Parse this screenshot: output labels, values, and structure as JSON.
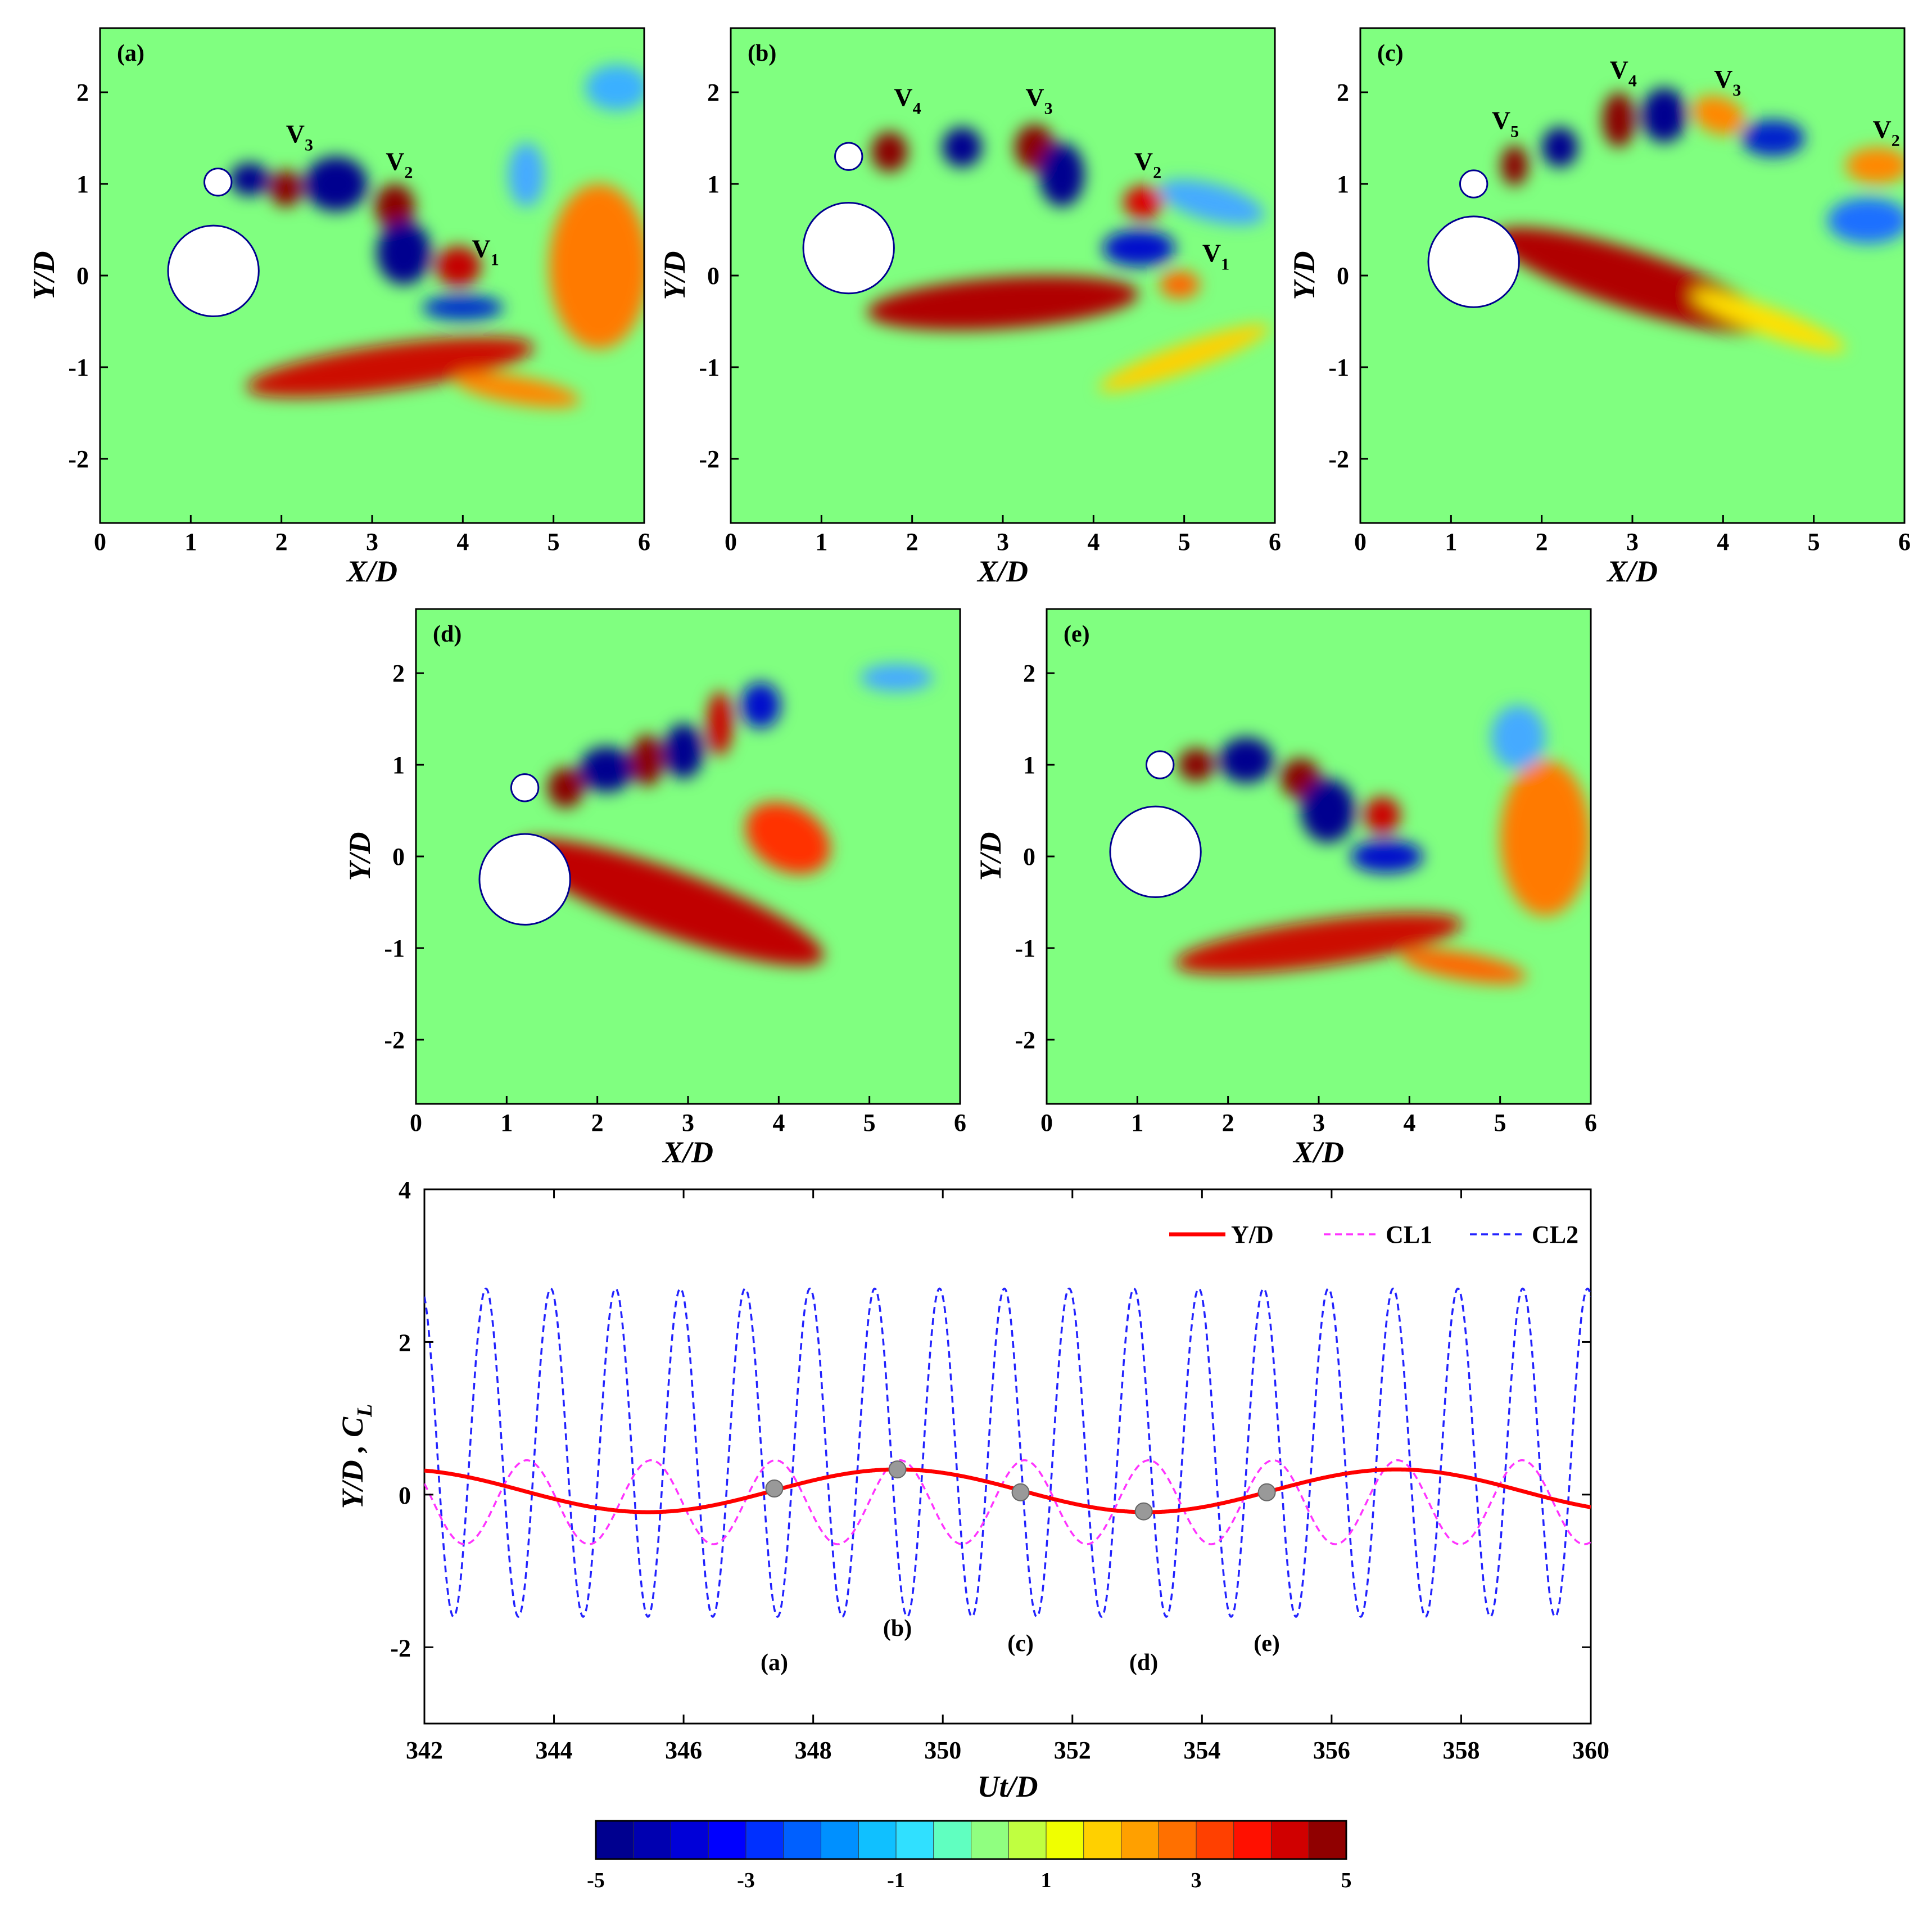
{
  "panels": [
    {
      "id": "a",
      "label": "(a)",
      "vortex_labels": [
        {
          "text": "V",
          "sub": "3",
          "x": 2.05,
          "y": 1.45
        },
        {
          "text": "V",
          "sub": "2",
          "x": 3.15,
          "y": 1.15
        },
        {
          "text": "V",
          "sub": "1",
          "x": 4.1,
          "y": 0.2
        }
      ],
      "cylinders": [
        {
          "x": 1.25,
          "y": 0.05,
          "d": 1.0
        },
        {
          "x": 1.3,
          "y": 1.02,
          "d": 0.3
        }
      ],
      "blobs": [
        {
          "x": 1.65,
          "y": 1.05,
          "rx": 0.22,
          "ry": 0.18,
          "rot": 0,
          "c": "#00008f"
        },
        {
          "x": 2.05,
          "y": 0.95,
          "rx": 0.18,
          "ry": 0.2,
          "rot": 0,
          "c": "#8b0000"
        },
        {
          "x": 2.6,
          "y": 1.0,
          "rx": 0.35,
          "ry": 0.3,
          "rot": 0,
          "c": "#00008f"
        },
        {
          "x": 3.25,
          "y": 0.75,
          "rx": 0.22,
          "ry": 0.25,
          "rot": 0,
          "c": "#8b0000"
        },
        {
          "x": 3.35,
          "y": 0.25,
          "rx": 0.3,
          "ry": 0.35,
          "rot": 0,
          "c": "#00008f"
        },
        {
          "x": 3.95,
          "y": 0.1,
          "rx": 0.25,
          "ry": 0.22,
          "rot": 0,
          "c": "#c40000"
        },
        {
          "x": 4.0,
          "y": -0.35,
          "rx": 0.45,
          "ry": 0.14,
          "rot": 0,
          "c": "#0033cc"
        },
        {
          "x": 5.5,
          "y": 0.1,
          "rx": 0.55,
          "ry": 0.9,
          "rot": 0,
          "c": "#ff7a00"
        },
        {
          "x": 3.2,
          "y": -1.0,
          "rx": 1.6,
          "ry": 0.25,
          "rot": 8,
          "c": "#cc1000"
        },
        {
          "x": 4.6,
          "y": -1.25,
          "rx": 0.7,
          "ry": 0.15,
          "rot": -10,
          "c": "#ff8800"
        },
        {
          "x": 5.7,
          "y": 2.05,
          "rx": 0.35,
          "ry": 0.25,
          "rot": 0,
          "c": "#3ab0ff"
        },
        {
          "x": 4.7,
          "y": 1.1,
          "rx": 0.2,
          "ry": 0.35,
          "rot": 0,
          "c": "#44aaff"
        }
      ]
    },
    {
      "id": "b",
      "label": "(b)",
      "vortex_labels": [
        {
          "text": "V",
          "sub": "4",
          "x": 1.8,
          "y": 1.85
        },
        {
          "text": "V",
          "sub": "3",
          "x": 3.25,
          "y": 1.85
        },
        {
          "text": "V",
          "sub": "2",
          "x": 4.45,
          "y": 1.15
        },
        {
          "text": "V",
          "sub": "1",
          "x": 5.2,
          "y": 0.15
        }
      ],
      "cylinders": [
        {
          "x": 1.3,
          "y": 0.3,
          "d": 1.0
        },
        {
          "x": 1.3,
          "y": 1.3,
          "d": 0.3
        }
      ],
      "blobs": [
        {
          "x": 1.75,
          "y": 1.35,
          "rx": 0.2,
          "ry": 0.22,
          "rot": 0,
          "c": "#8b0000"
        },
        {
          "x": 2.55,
          "y": 1.4,
          "rx": 0.22,
          "ry": 0.22,
          "rot": 0,
          "c": "#00008f"
        },
        {
          "x": 3.35,
          "y": 1.4,
          "rx": 0.22,
          "ry": 0.25,
          "rot": 0,
          "c": "#8b0000"
        },
        {
          "x": 3.65,
          "y": 1.1,
          "rx": 0.25,
          "ry": 0.35,
          "rot": 0,
          "c": "#00008f"
        },
        {
          "x": 4.55,
          "y": 0.8,
          "rx": 0.22,
          "ry": 0.18,
          "rot": 0,
          "c": "#dd0000"
        },
        {
          "x": 4.5,
          "y": 0.3,
          "rx": 0.4,
          "ry": 0.2,
          "rot": 0,
          "c": "#0010cc"
        },
        {
          "x": 4.95,
          "y": -0.1,
          "rx": 0.22,
          "ry": 0.15,
          "rot": 0,
          "c": "#ff6600"
        },
        {
          "x": 3.0,
          "y": -0.3,
          "rx": 1.5,
          "ry": 0.28,
          "rot": 4,
          "c": "#b00000"
        },
        {
          "x": 5.0,
          "y": -0.9,
          "rx": 1.0,
          "ry": 0.15,
          "rot": 20,
          "c": "#ffd000"
        },
        {
          "x": 5.3,
          "y": 0.8,
          "rx": 0.6,
          "ry": 0.2,
          "rot": -15,
          "c": "#44aaff"
        }
      ]
    },
    {
      "id": "c",
      "label": "(c)",
      "vortex_labels": [
        {
          "text": "V",
          "sub": "5",
          "x": 1.45,
          "y": 1.6
        },
        {
          "text": "V",
          "sub": "4",
          "x": 2.75,
          "y": 2.15
        },
        {
          "text": "V",
          "sub": "3",
          "x": 3.9,
          "y": 2.05
        },
        {
          "text": "V",
          "sub": "2",
          "x": 5.65,
          "y": 1.5
        }
      ],
      "cylinders": [
        {
          "x": 1.25,
          "y": 0.15,
          "d": 1.0
        },
        {
          "x": 1.25,
          "y": 1.0,
          "d": 0.3
        }
      ],
      "blobs": [
        {
          "x": 1.7,
          "y": 1.2,
          "rx": 0.15,
          "ry": 0.22,
          "rot": 0,
          "c": "#8b0000"
        },
        {
          "x": 2.2,
          "y": 1.4,
          "rx": 0.2,
          "ry": 0.22,
          "rot": 0,
          "c": "#00008f"
        },
        {
          "x": 2.85,
          "y": 1.7,
          "rx": 0.18,
          "ry": 0.3,
          "rot": 0,
          "c": "#8b0000"
        },
        {
          "x": 3.35,
          "y": 1.75,
          "rx": 0.25,
          "ry": 0.3,
          "rot": 0,
          "c": "#00008f"
        },
        {
          "x": 3.95,
          "y": 1.75,
          "rx": 0.3,
          "ry": 0.2,
          "rot": -20,
          "c": "#ff8800"
        },
        {
          "x": 4.55,
          "y": 1.5,
          "rx": 0.35,
          "ry": 0.2,
          "rot": 0,
          "c": "#0022cc"
        },
        {
          "x": 5.7,
          "y": 1.2,
          "rx": 0.35,
          "ry": 0.2,
          "rot": 0,
          "c": "#ff8800"
        },
        {
          "x": 5.6,
          "y": 0.6,
          "rx": 0.45,
          "ry": 0.25,
          "rot": 0,
          "c": "#1a70ff"
        },
        {
          "x": 3.0,
          "y": -0.05,
          "rx": 1.6,
          "ry": 0.32,
          "rot": -18,
          "c": "#b00000"
        },
        {
          "x": 4.5,
          "y": -0.5,
          "rx": 0.9,
          "ry": 0.15,
          "rot": -20,
          "c": "#ffe000"
        }
      ]
    },
    {
      "id": "d",
      "label": "(d)",
      "vortex_labels": [],
      "cylinders": [
        {
          "x": 1.2,
          "y": -0.25,
          "d": 1.0
        },
        {
          "x": 1.2,
          "y": 0.75,
          "d": 0.3
        }
      ],
      "blobs": [
        {
          "x": 1.65,
          "y": 0.75,
          "rx": 0.2,
          "ry": 0.22,
          "rot": 0,
          "c": "#8b0000"
        },
        {
          "x": 2.1,
          "y": 0.95,
          "rx": 0.3,
          "ry": 0.25,
          "rot": 0,
          "c": "#00008f"
        },
        {
          "x": 2.55,
          "y": 1.05,
          "rx": 0.18,
          "ry": 0.28,
          "rot": 0,
          "c": "#8b0000"
        },
        {
          "x": 2.95,
          "y": 1.15,
          "rx": 0.22,
          "ry": 0.3,
          "rot": 0,
          "c": "#00008f"
        },
        {
          "x": 3.35,
          "y": 1.45,
          "rx": 0.14,
          "ry": 0.35,
          "rot": 0,
          "c": "#cc0000"
        },
        {
          "x": 3.8,
          "y": 1.65,
          "rx": 0.22,
          "ry": 0.25,
          "rot": 0,
          "c": "#0010cc"
        },
        {
          "x": 5.3,
          "y": 1.95,
          "rx": 0.4,
          "ry": 0.15,
          "rot": 0,
          "c": "#44aaff"
        },
        {
          "x": 2.8,
          "y": -0.5,
          "rx": 1.8,
          "ry": 0.35,
          "rot": -20,
          "c": "#c00000"
        },
        {
          "x": 4.1,
          "y": 0.2,
          "rx": 0.5,
          "ry": 0.35,
          "rot": -30,
          "c": "#ff3300"
        }
      ]
    },
    {
      "id": "e",
      "label": "(e)",
      "vortex_labels": [],
      "cylinders": [
        {
          "x": 1.2,
          "y": 0.05,
          "d": 1.0
        },
        {
          "x": 1.25,
          "y": 1.0,
          "d": 0.3
        }
      ],
      "blobs": [
        {
          "x": 1.65,
          "y": 1.0,
          "rx": 0.2,
          "ry": 0.18,
          "rot": 0,
          "c": "#8b0000"
        },
        {
          "x": 2.2,
          "y": 1.05,
          "rx": 0.3,
          "ry": 0.25,
          "rot": 0,
          "c": "#00008f"
        },
        {
          "x": 2.8,
          "y": 0.85,
          "rx": 0.22,
          "ry": 0.22,
          "rot": 0,
          "c": "#8b0000"
        },
        {
          "x": 3.1,
          "y": 0.5,
          "rx": 0.3,
          "ry": 0.35,
          "rot": 0,
          "c": "#00008f"
        },
        {
          "x": 3.7,
          "y": 0.45,
          "rx": 0.2,
          "ry": 0.2,
          "rot": 0,
          "c": "#cc0000"
        },
        {
          "x": 3.75,
          "y": 0.0,
          "rx": 0.4,
          "ry": 0.18,
          "rot": 0,
          "c": "#0010cc"
        },
        {
          "x": 5.5,
          "y": 0.2,
          "rx": 0.5,
          "ry": 0.85,
          "rot": 0,
          "c": "#ff7a00"
        },
        {
          "x": 3.0,
          "y": -0.95,
          "rx": 1.6,
          "ry": 0.25,
          "rot": 8,
          "c": "#cc1000"
        },
        {
          "x": 4.6,
          "y": -1.2,
          "rx": 0.7,
          "ry": 0.15,
          "rot": -10,
          "c": "#ff6600"
        },
        {
          "x": 5.2,
          "y": 1.3,
          "rx": 0.3,
          "ry": 0.35,
          "rot": 0,
          "c": "#44aaff"
        }
      ]
    }
  ],
  "panel_axes": {
    "xlabel": "X/D",
    "ylabel": "Y/D",
    "xlim": [
      0,
      6
    ],
    "ylim": [
      -2.7,
      2.7
    ],
    "xticks": [
      "0",
      "1",
      "2",
      "3",
      "4",
      "5",
      "6"
    ],
    "yticks": [
      "-2",
      "-1",
      "0",
      "1",
      "2"
    ],
    "background_color": "#80ff80"
  },
  "chart_data": {
    "type": "line",
    "xlabel": "Ut/D",
    "ylabel": "Y/D , C",
    "ylabel_sub": "L",
    "xlim": [
      342,
      360
    ],
    "ylim": [
      -3,
      4
    ],
    "xticks": [
      "342",
      "344",
      "346",
      "348",
      "350",
      "352",
      "354",
      "356",
      "358",
      "360"
    ],
    "yticks": [
      "-2",
      "0",
      "2",
      "4"
    ],
    "legend_position": "top-right",
    "series": [
      {
        "name": "Y/D",
        "color": "#ff0000",
        "style": "solid",
        "mean": 0.05,
        "amplitude": 0.28,
        "period": 7.7,
        "phase_x": 349.3
      },
      {
        "name": "CL1",
        "color": "#ff33ff",
        "style": "dashed",
        "mean": -0.1,
        "amplitude": 0.55,
        "period": 1.92,
        "phase_x": 345.5
      },
      {
        "name": "CL2",
        "color": "#2222ff",
        "style": "dashed",
        "mean": 0.55,
        "amplitude": 2.15,
        "period": 1.0,
        "phase_x": 342.95
      }
    ],
    "markers": [
      {
        "label": "(a)",
        "x": 347.4,
        "y": 0.08,
        "label_y": -2.3
      },
      {
        "label": "(b)",
        "x": 349.3,
        "y": 0.33,
        "label_y": -1.85
      },
      {
        "label": "(c)",
        "x": 351.2,
        "y": 0.03,
        "label_y": -2.05
      },
      {
        "label": "(d)",
        "x": 353.1,
        "y": -0.22,
        "label_y": -2.3
      },
      {
        "label": "(e)",
        "x": 355.0,
        "y": 0.03,
        "label_y": -2.05
      }
    ]
  },
  "colorbar": {
    "ticks": [
      "-5",
      "-3",
      "-1",
      "1",
      "3",
      "5"
    ],
    "range": [
      -5,
      5
    ],
    "segments": 20,
    "colors": [
      "#00008f",
      "#0000b0",
      "#0000d8",
      "#0000ff",
      "#0030ff",
      "#0060ff",
      "#0090ff",
      "#10c0ff",
      "#30e0ff",
      "#60ffc0",
      "#90ff80",
      "#c0ff40",
      "#f0ff00",
      "#ffd000",
      "#ffa000",
      "#ff7000",
      "#ff4000",
      "#ff1000",
      "#d00000",
      "#900000"
    ]
  }
}
